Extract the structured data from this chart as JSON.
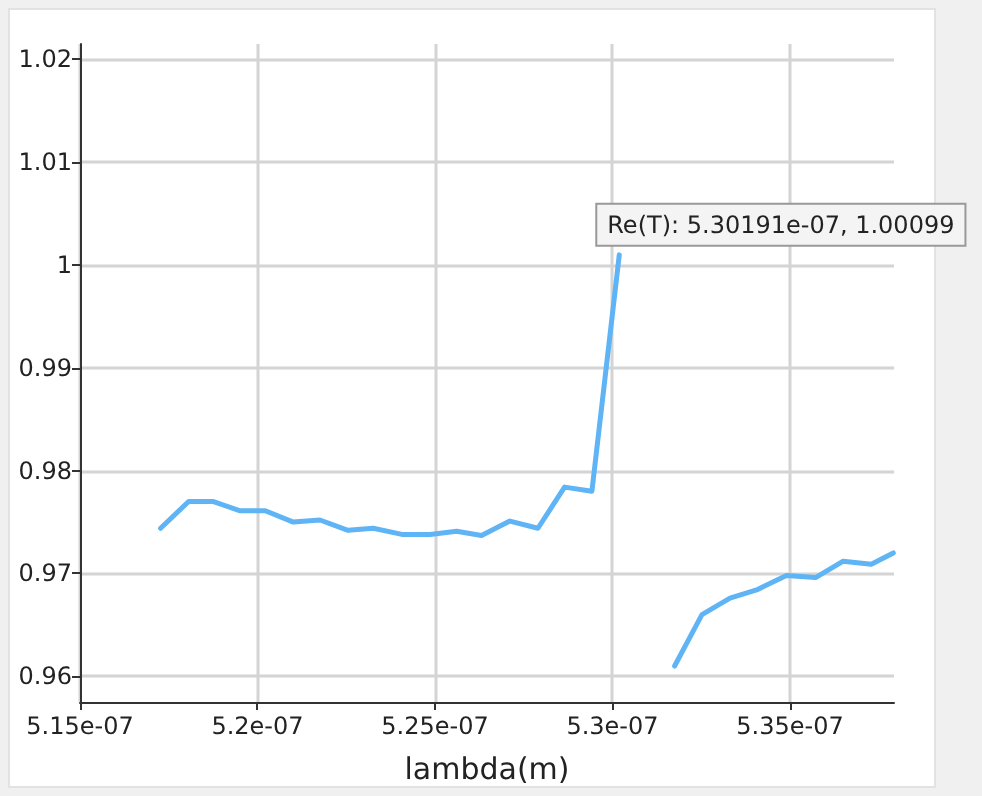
{
  "chart_data": {
    "type": "line",
    "xlabel": "lambda(m)",
    "x": [
      5.1727e-07,
      5.1806e-07,
      5.1876e-07,
      5.1951e-07,
      5.2022e-07,
      5.2101e-07,
      5.2176e-07,
      5.2255e-07,
      5.2326e-07,
      5.2407e-07,
      5.2486e-07,
      5.2561e-07,
      5.2631e-07,
      5.2711e-07,
      5.279e-07,
      5.2865e-07,
      5.2942e-07,
      5.30191e-07,
      5.3087e-07,
      5.31524e-07,
      5.3175e-07,
      5.3252e-07,
      5.3331e-07,
      5.3406e-07,
      5.349e-07,
      5.3572e-07,
      5.365e-07,
      5.3729e-07,
      5.3791e-07
    ],
    "series": [
      {
        "color": "#5fb4f5",
        "values": [
          0.9744,
          0.977,
          0.977,
          0.9761,
          0.9761,
          0.975,
          0.9752,
          0.9742,
          0.9744,
          0.9738,
          0.9738,
          0.9741,
          0.9737,
          0.9751,
          0.9744,
          0.9784,
          0.978,
          1.00099,
          null,
          null,
          0.961,
          0.966,
          0.9676,
          0.9684,
          0.9698,
          0.9696,
          0.9712,
          0.9709,
          0.972
        ]
      }
    ],
    "xlim": [
      5.15e-07,
      5.3793e-07
    ],
    "xticks": [
      {
        "value": 5.15e-07,
        "label": "5.15e-07"
      },
      {
        "value": 5.2e-07,
        "label": "5.2e-07"
      },
      {
        "value": 5.25e-07,
        "label": "5.25e-07"
      },
      {
        "value": 5.3e-07,
        "label": "5.3e-07"
      },
      {
        "value": 5.35e-07,
        "label": "5.35e-07"
      }
    ],
    "ylim": [
      0.9575,
      1.0215
    ],
    "yticks": [
      0.96,
      0.97,
      0.98,
      0.99,
      1,
      1.01,
      1.02
    ],
    "grid": true,
    "marker": "none",
    "line_style": "solid",
    "annotations": [
      {
        "text": "Re(T): 5.30191e-07, 1.00099",
        "x": 5.30191e-07,
        "y": 1.00099
      }
    ]
  }
}
